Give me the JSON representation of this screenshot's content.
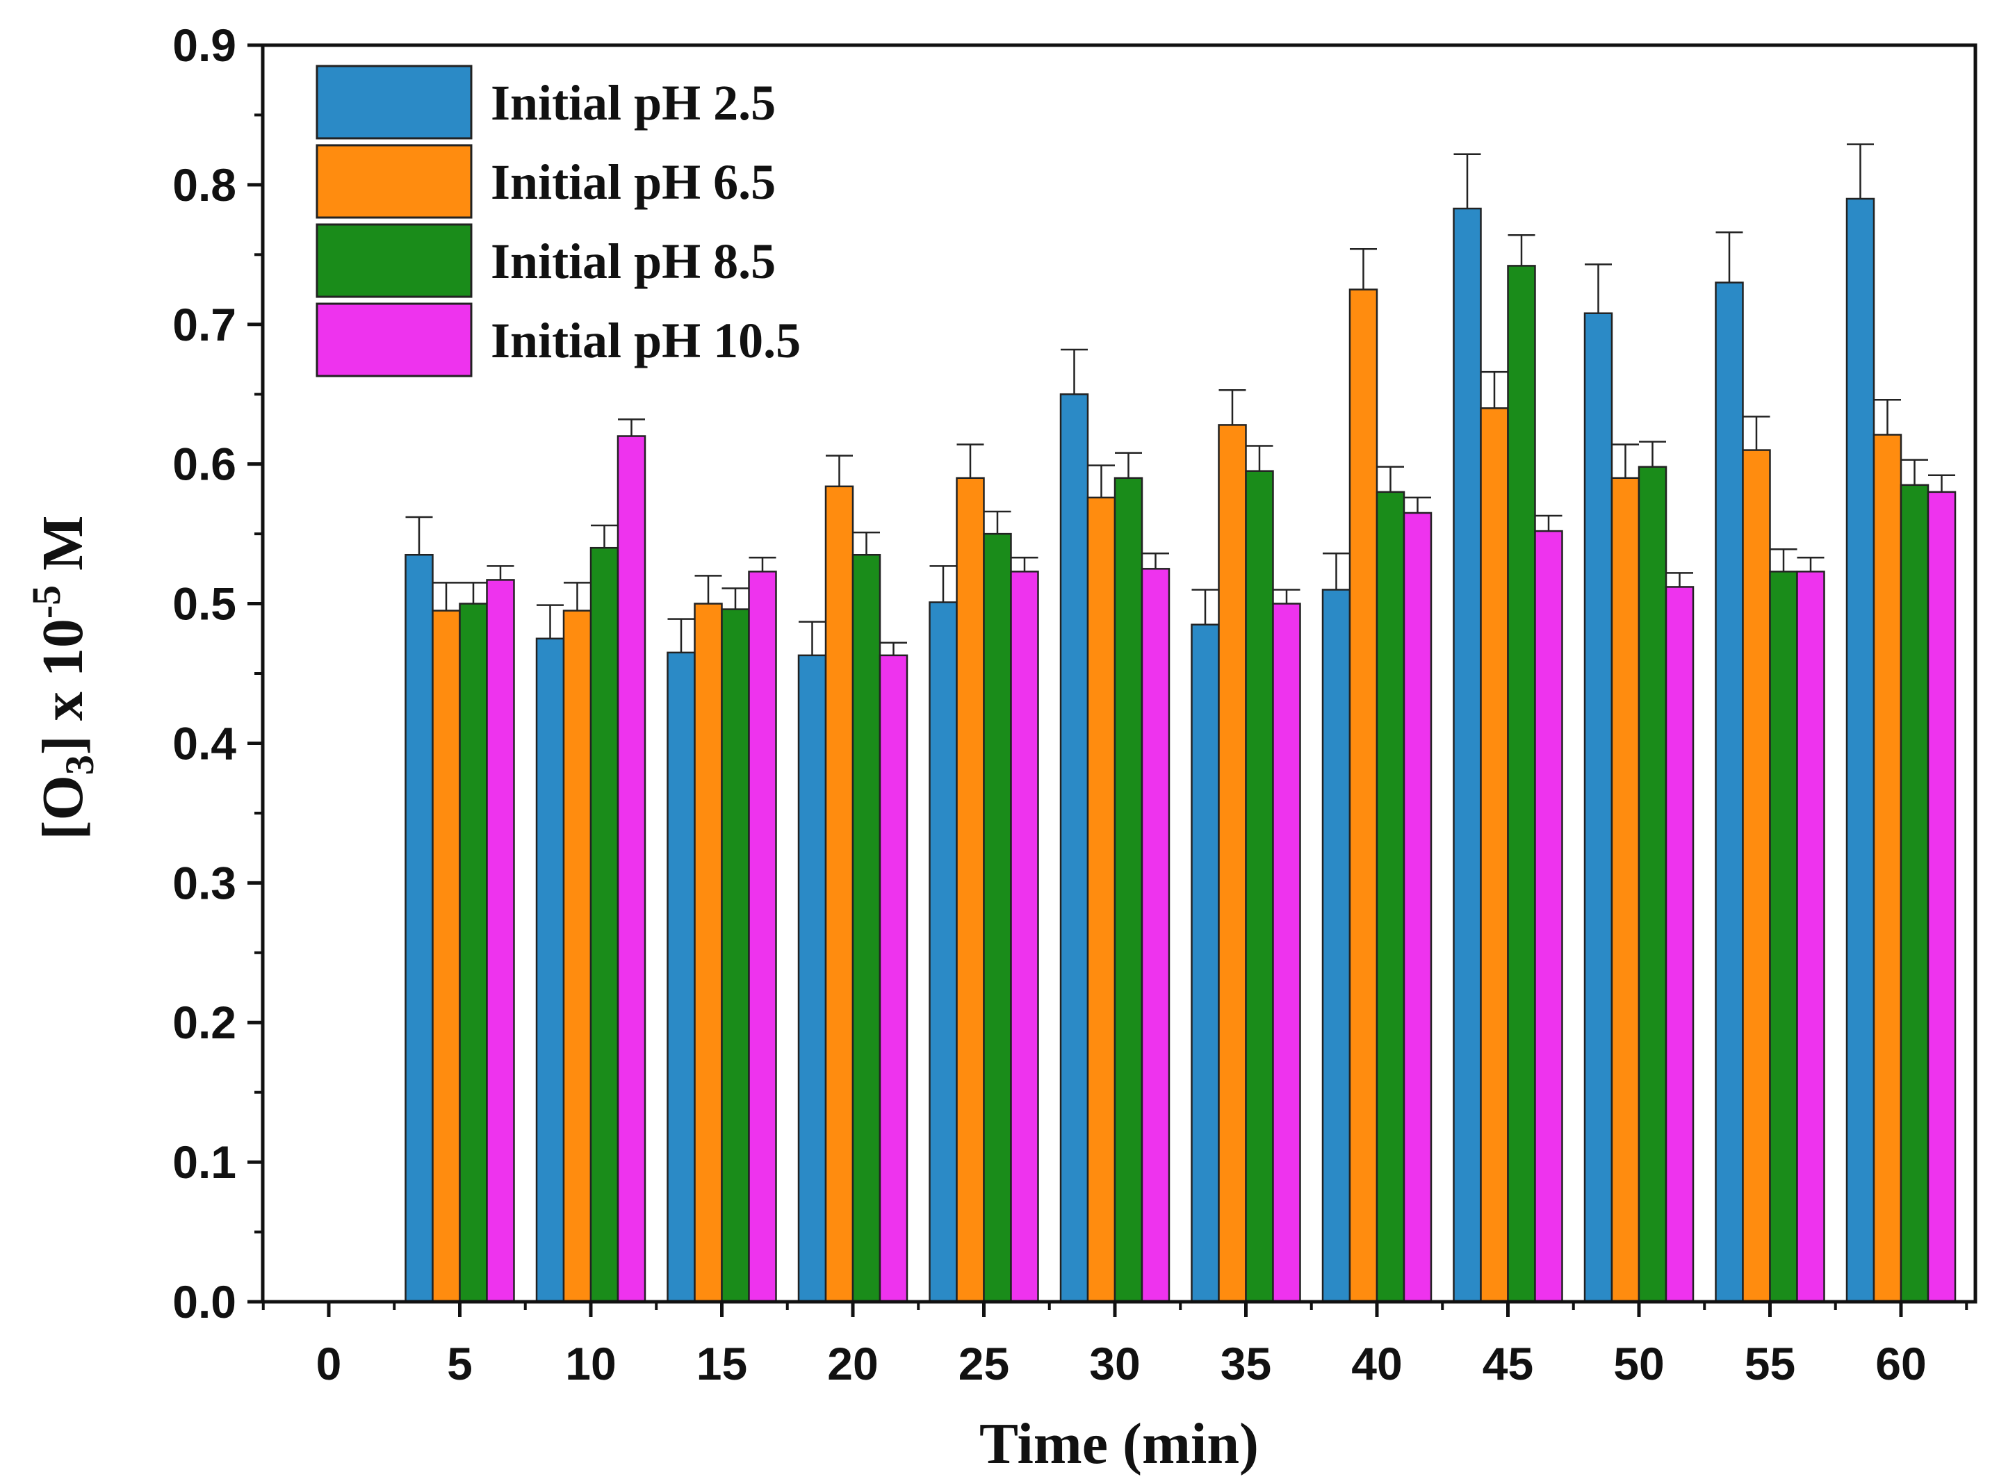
{
  "chart_data": {
    "type": "bar",
    "title": "",
    "xlabel": "Time (min)",
    "ylabel": {
      "prefix": "[O",
      "subscript": "3",
      "middle": "] x 10",
      "superscript": "-5",
      "suffix": " M"
    },
    "categories": [
      "0",
      "5",
      "10",
      "15",
      "20",
      "25",
      "30",
      "35",
      "40",
      "45",
      "50",
      "55",
      "60"
    ],
    "ylim": [
      0,
      0.9
    ],
    "yticks": [
      "0.0",
      "0.1",
      "0.2",
      "0.3",
      "0.4",
      "0.5",
      "0.6",
      "0.7",
      "0.8",
      "0.9"
    ],
    "legend_position": "top-left",
    "series": [
      {
        "name": "Initial pH 2.5",
        "color": "#2b8ac6",
        "values": [
          null,
          0.535,
          0.475,
          0.465,
          0.463,
          0.501,
          0.65,
          0.485,
          0.51,
          0.783,
          0.708,
          0.73,
          0.79
        ],
        "errors": [
          null,
          0.027,
          0.024,
          0.024,
          0.024,
          0.026,
          0.032,
          0.025,
          0.026,
          0.039,
          0.035,
          0.036,
          0.039
        ]
      },
      {
        "name": "Initial pH 6.5",
        "color": "#ff8c0f",
        "values": [
          null,
          0.495,
          0.495,
          0.5,
          0.584,
          0.59,
          0.576,
          0.628,
          0.725,
          0.64,
          0.59,
          0.61,
          0.621
        ],
        "errors": [
          null,
          0.02,
          0.02,
          0.02,
          0.022,
          0.024,
          0.023,
          0.025,
          0.029,
          0.026,
          0.024,
          0.024,
          0.025
        ]
      },
      {
        "name": "Initial pH 8.5",
        "color": "#1a8c1a",
        "values": [
          null,
          0.5,
          0.54,
          0.496,
          0.535,
          0.55,
          0.59,
          0.595,
          0.58,
          0.742,
          0.598,
          0.523,
          0.585
        ],
        "errors": [
          null,
          0.015,
          0.016,
          0.015,
          0.016,
          0.016,
          0.018,
          0.018,
          0.018,
          0.022,
          0.018,
          0.016,
          0.018
        ]
      },
      {
        "name": "Initial pH 10.5",
        "color": "#ee33ee",
        "values": [
          null,
          0.517,
          0.62,
          0.523,
          0.463,
          0.523,
          0.525,
          0.5,
          0.565,
          0.552,
          0.512,
          0.523,
          0.58
        ],
        "errors": [
          null,
          0.01,
          0.012,
          0.01,
          0.009,
          0.01,
          0.011,
          0.01,
          0.011,
          0.011,
          0.01,
          0.01,
          0.012
        ]
      }
    ]
  }
}
